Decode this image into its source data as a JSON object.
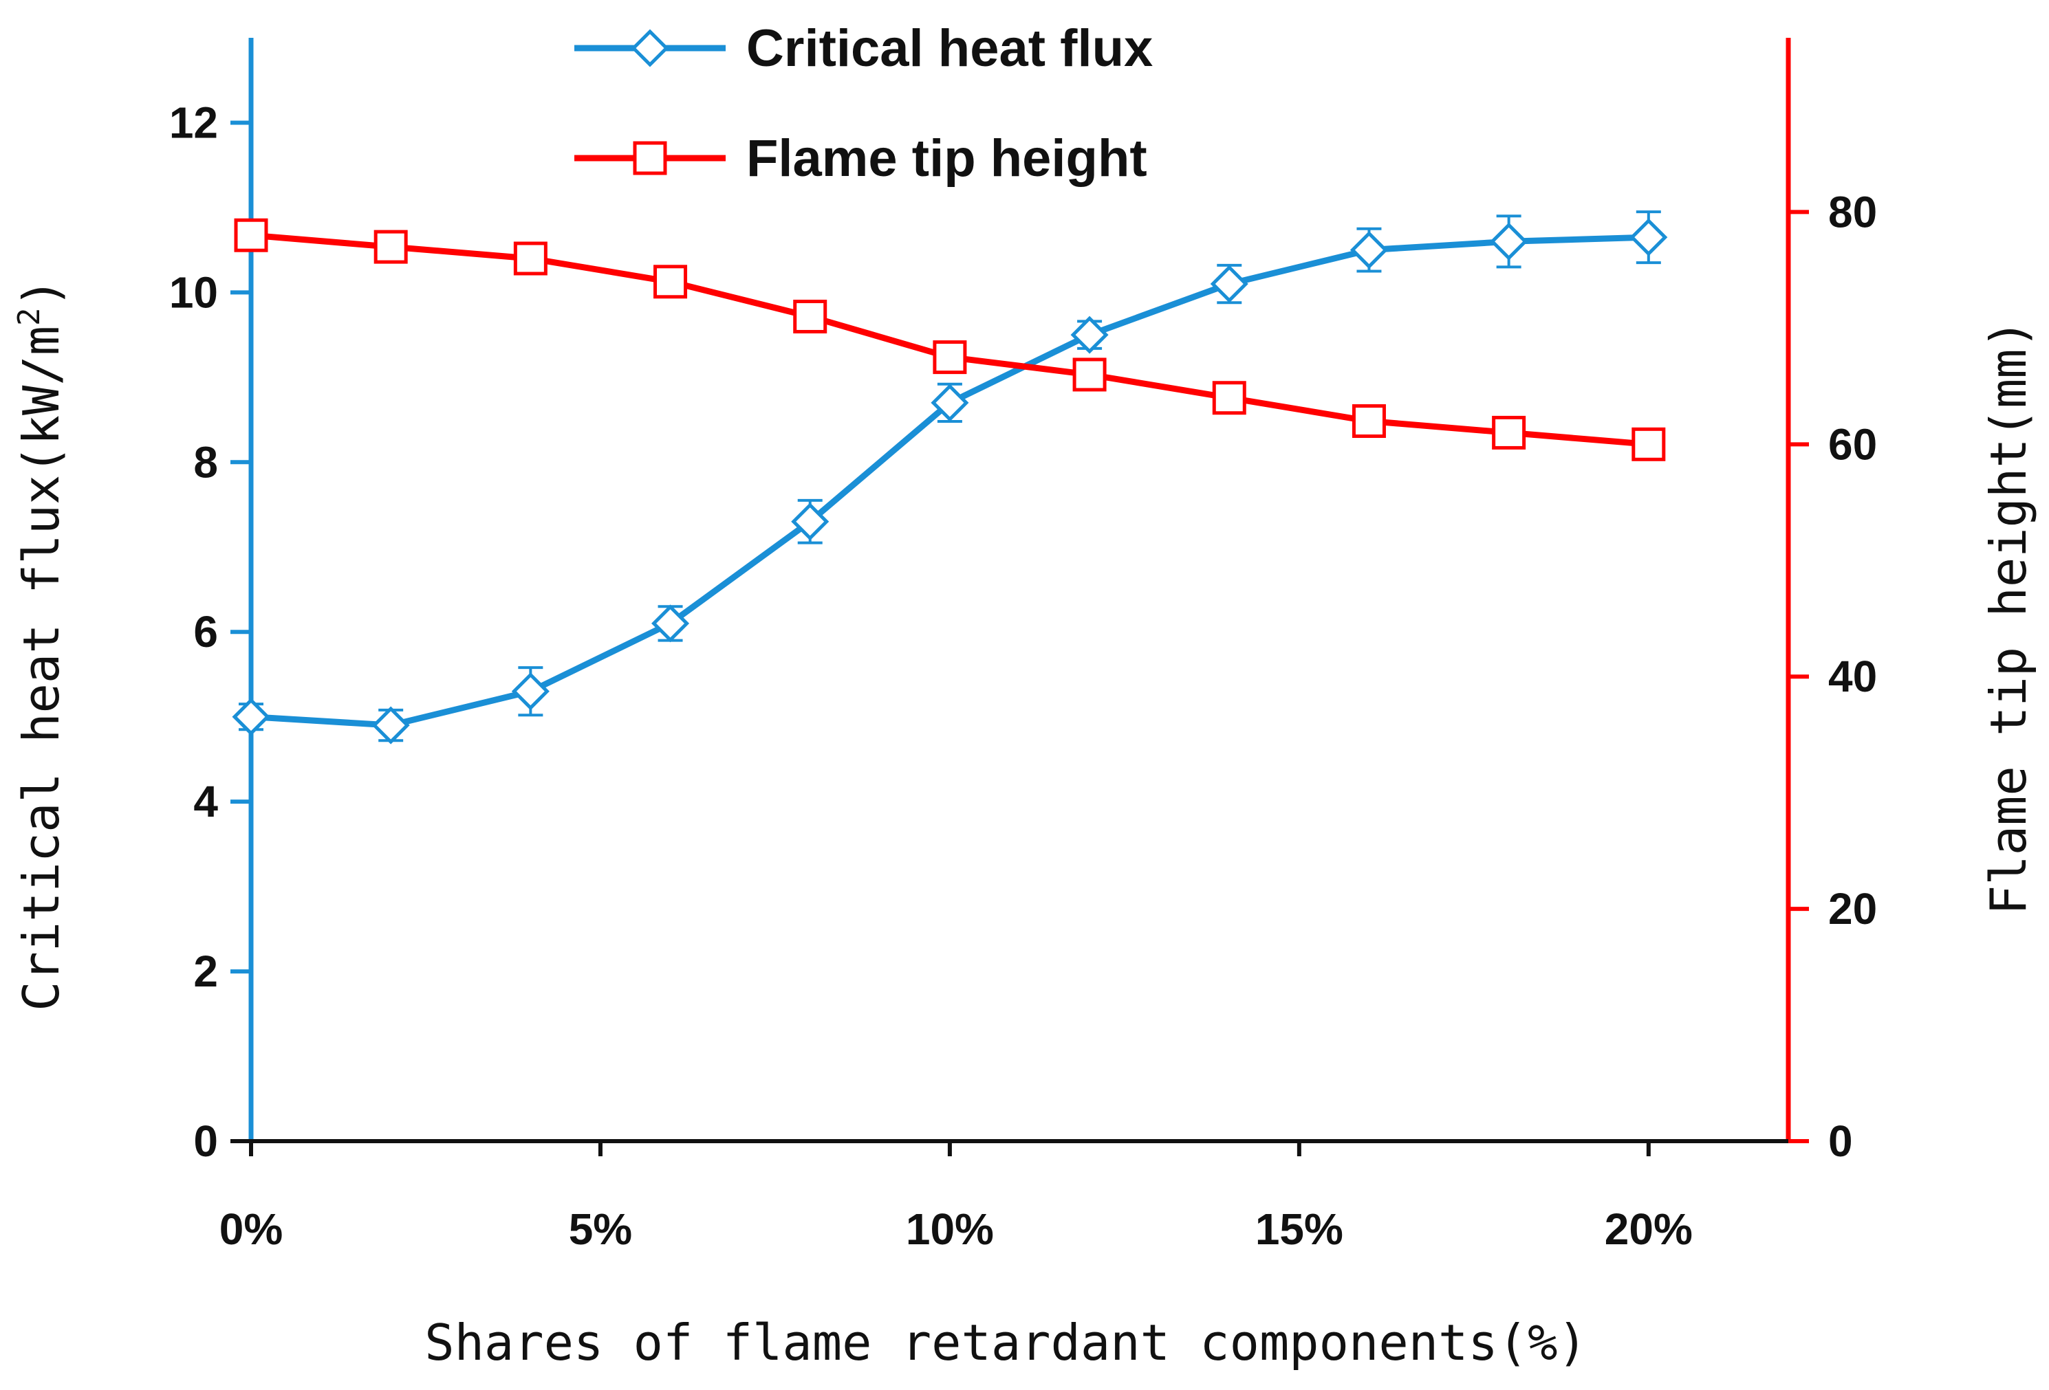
{
  "chart_data": {
    "type": "line",
    "x": [
      0,
      2,
      4,
      6,
      8,
      10,
      12,
      14,
      16,
      18,
      20
    ],
    "xlabel": "Shares of flame retardant components(%)",
    "xlim": [
      0,
      22
    ],
    "xticks": [
      0,
      5,
      10,
      15,
      20
    ],
    "xtick_labels": [
      "0%",
      "5%",
      "10%",
      "15%",
      "20%"
    ],
    "y_left": {
      "label": "Critical heat flux(kW/m",
      "label_superscript": "2",
      "label_suffix": ")",
      "range": [
        0,
        13
      ],
      "ticks": [
        0,
        2,
        4,
        6,
        8,
        10,
        12
      ],
      "tick_labels": [
        "0",
        "2",
        "4",
        "6",
        "8",
        "10",
        "12"
      ],
      "color": "#1a8fd6"
    },
    "y_right": {
      "label": "Flame tip height(mm)",
      "range": [
        0,
        95
      ],
      "ticks": [
        0,
        20,
        40,
        60,
        80
      ],
      "tick_labels": [
        "0",
        "20",
        "40",
        "60",
        "80"
      ],
      "color": "#ff0000"
    },
    "series": [
      {
        "name": "Critical heat flux",
        "axis": "left",
        "marker": "diamond",
        "color": "#1a8fd6",
        "values": [
          5.0,
          4.9,
          5.3,
          6.1,
          7.3,
          8.7,
          9.5,
          10.1,
          10.5,
          10.6,
          10.65
        ],
        "errors": [
          0.15,
          0.18,
          0.28,
          0.2,
          0.25,
          0.22,
          0.16,
          0.22,
          0.25,
          0.3,
          0.3
        ]
      },
      {
        "name": "Flame tip height",
        "axis": "right",
        "marker": "square",
        "color": "#ff0000",
        "values": [
          78,
          77,
          76,
          74,
          71,
          67.5,
          66,
          64,
          62,
          61,
          60
        ]
      }
    ],
    "legend": [
      "Critical heat flux",
      "Flame tip height"
    ],
    "legend_position": "top-center",
    "grid": false
  }
}
